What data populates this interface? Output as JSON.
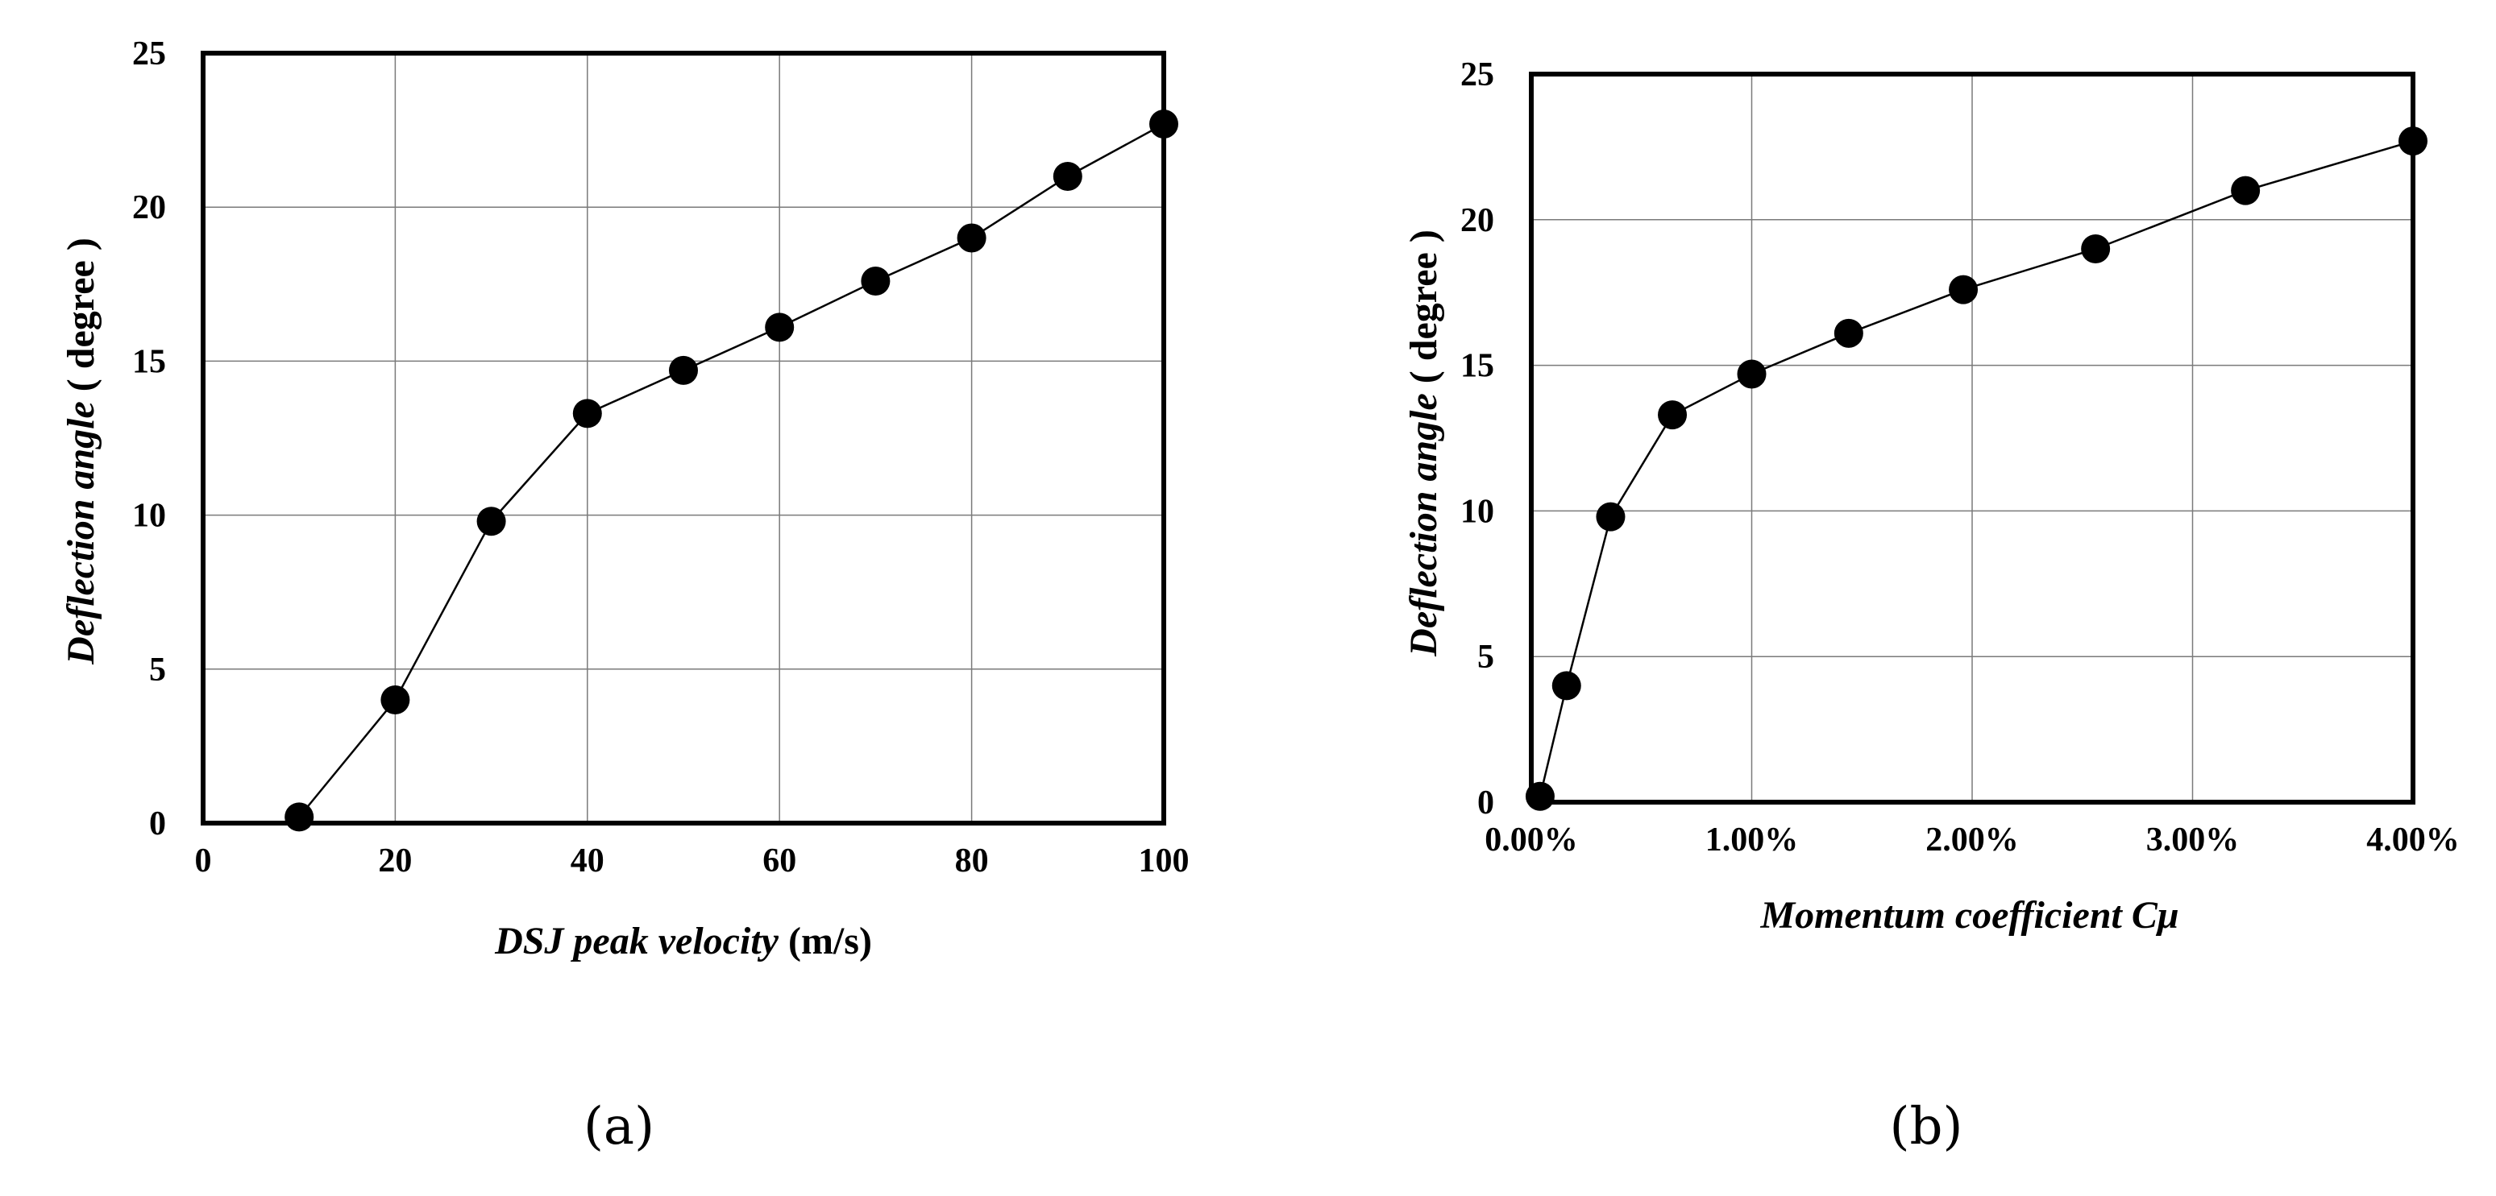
{
  "chart_data": [
    {
      "type": "line",
      "panel_label": "(a)",
      "xlabel_italic": "DSJ peak velocity",
      "xlabel_unit": " (m/s)",
      "ylabel_italic": "Deflection angle",
      "ylabel_unit": " ( degree )",
      "xlim": [
        0,
        100
      ],
      "ylim": [
        0,
        25
      ],
      "x_ticks": [
        0,
        20,
        40,
        60,
        80,
        100
      ],
      "x_tick_labels": [
        "0",
        "20",
        "40",
        "60",
        "80",
        "100"
      ],
      "y_ticks": [
        0,
        5,
        10,
        15,
        20,
        25
      ],
      "y_tick_labels": [
        "0",
        "5",
        "10",
        "15",
        "20",
        "25"
      ],
      "grid": true,
      "series": [
        {
          "name": "Deflection angle",
          "x": [
            10,
            20,
            30,
            40,
            50,
            60,
            70,
            80,
            90,
            100
          ],
          "y": [
            0.2,
            4.0,
            9.8,
            13.3,
            14.7,
            16.1,
            17.6,
            19.0,
            21.0,
            22.7
          ]
        }
      ]
    },
    {
      "type": "line",
      "panel_label": "(b)",
      "xlabel_italic": "Momentum coefficient Cμ",
      "xlabel_unit": "",
      "ylabel_italic": "Deflection angle",
      "ylabel_unit": " ( degree )",
      "xlim": [
        0,
        4
      ],
      "ylim": [
        0,
        25
      ],
      "x_ticks": [
        0,
        1,
        2,
        3,
        4
      ],
      "x_tick_labels": [
        "0.00%",
        "1.00%",
        "2.00%",
        "3.00%",
        "4.00%"
      ],
      "y_ticks": [
        0,
        5,
        10,
        15,
        20,
        25
      ],
      "y_tick_labels": [
        "0",
        "5",
        "10",
        "15",
        "20",
        "25"
      ],
      "grid": true,
      "series": [
        {
          "name": "Deflection angle",
          "x": [
            0.04,
            0.16,
            0.36,
            0.64,
            1.0,
            1.44,
            1.96,
            2.56,
            3.24,
            4.0
          ],
          "y": [
            0.2,
            4.0,
            9.8,
            13.3,
            14.7,
            16.1,
            17.6,
            19.0,
            21.0,
            22.7
          ]
        }
      ]
    }
  ]
}
